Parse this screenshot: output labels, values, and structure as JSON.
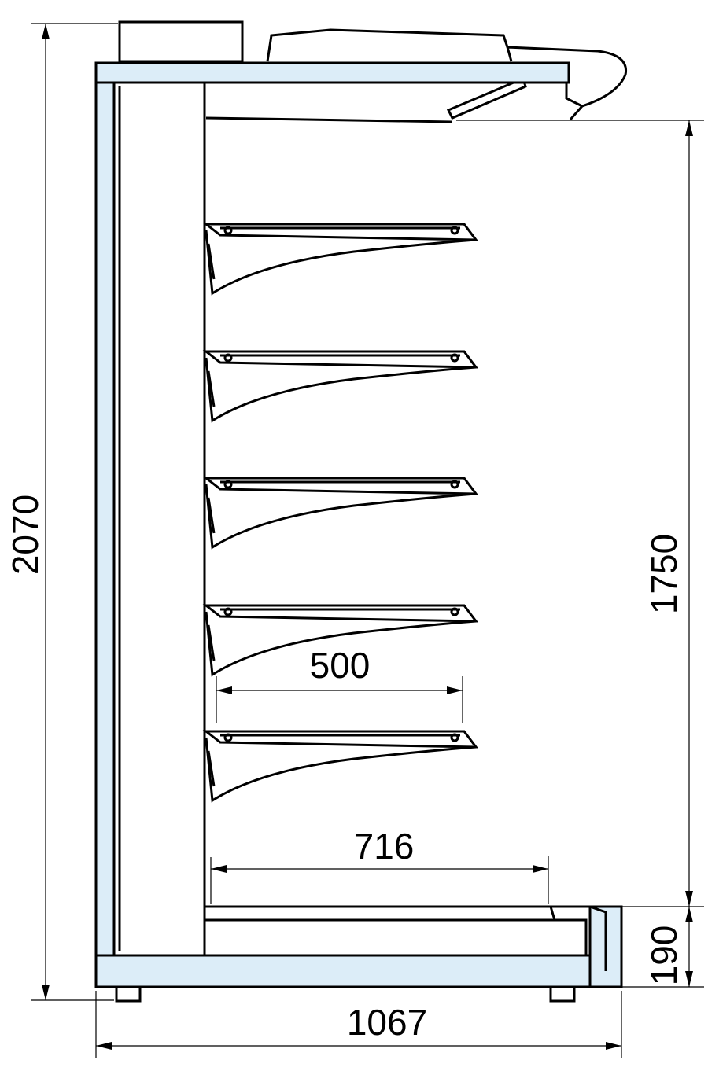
{
  "dimensions": {
    "total_height": "2070",
    "shelf_zone_height": "1750",
    "shelf_depth": "500",
    "base_depth": "716",
    "base_height": "190",
    "total_depth": "1067"
  }
}
